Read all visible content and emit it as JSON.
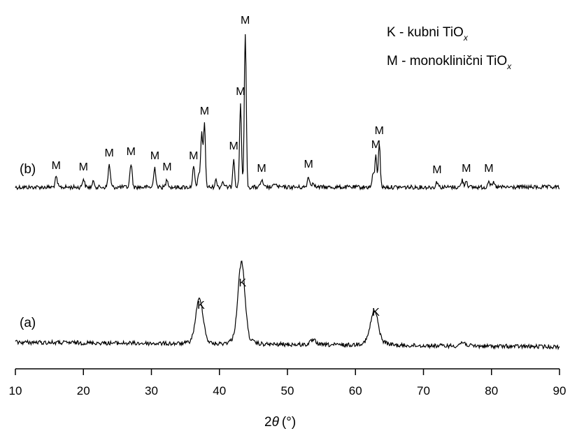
{
  "chart_data": {
    "type": "line",
    "xlabel_prefix": "2",
    "xlabel_symbol": "θ",
    "xlabel_unit": "(°)",
    "xlim": [
      10,
      90
    ],
    "xticks": [
      10,
      20,
      30,
      40,
      50,
      60,
      70,
      80,
      90
    ],
    "ylabel": "",
    "legend": [
      {
        "text": "K - kubni TiO",
        "sub": "x"
      },
      {
        "text": "M - monoklinični TiO",
        "sub": "x"
      }
    ],
    "series": [
      {
        "label": "(b)",
        "color": "#000000",
        "baseline": 0,
        "peaks": [
          {
            "x": 16.0,
            "h": 14,
            "label": "M"
          },
          {
            "x": 20.0,
            "h": 12,
            "label": "M"
          },
          {
            "x": 21.5,
            "h": 8,
            "label": ""
          },
          {
            "x": 23.8,
            "h": 32,
            "label": "M"
          },
          {
            "x": 27.0,
            "h": 34,
            "label": "M"
          },
          {
            "x": 30.5,
            "h": 28,
            "label": "M"
          },
          {
            "x": 32.3,
            "h": 12,
            "label": "M"
          },
          {
            "x": 36.2,
            "h": 28,
            "label": "M"
          },
          {
            "x": 37.0,
            "h": 20,
            "label": ""
          },
          {
            "x": 37.4,
            "h": 76,
            "label": ""
          },
          {
            "x": 37.8,
            "h": 92,
            "label": "M"
          },
          {
            "x": 39.5,
            "h": 10,
            "label": ""
          },
          {
            "x": 40.5,
            "h": 8,
            "label": ""
          },
          {
            "x": 42.1,
            "h": 42,
            "label": "M"
          },
          {
            "x": 43.1,
            "h": 120,
            "label": "M"
          },
          {
            "x": 43.8,
            "h": 222,
            "label": "M"
          },
          {
            "x": 46.2,
            "h": 10,
            "label": "M"
          },
          {
            "x": 48.2,
            "h": 6,
            "label": ""
          },
          {
            "x": 53.1,
            "h": 16,
            "label": "M"
          },
          {
            "x": 53.8,
            "h": 8,
            "label": ""
          },
          {
            "x": 62.6,
            "h": 18,
            "label": ""
          },
          {
            "x": 63.0,
            "h": 44,
            "label": "M"
          },
          {
            "x": 63.5,
            "h": 64,
            "label": "M"
          },
          {
            "x": 72.0,
            "h": 8,
            "label": "M"
          },
          {
            "x": 75.7,
            "h": 10,
            "label": ""
          },
          {
            "x": 76.3,
            "h": 10,
            "label": "M"
          },
          {
            "x": 79.6,
            "h": 10,
            "label": "M"
          },
          {
            "x": 80.3,
            "h": 6,
            "label": ""
          }
        ]
      },
      {
        "label": "(a)",
        "color": "#000000",
        "baseline": 0,
        "peaks": [
          {
            "x": 36.8,
            "h": 32,
            "label": ""
          },
          {
            "x": 37.3,
            "h": 36,
            "label": "K"
          },
          {
            "x": 43.0,
            "h": 50,
            "label": ""
          },
          {
            "x": 43.4,
            "h": 68,
            "label": "K"
          },
          {
            "x": 62.5,
            "h": 22,
            "label": ""
          },
          {
            "x": 63.0,
            "h": 26,
            "label": "K"
          },
          {
            "x": 53.8,
            "h": 6,
            "label": ""
          },
          {
            "x": 75.8,
            "h": 5,
            "label": ""
          }
        ]
      }
    ],
    "grid": false
  }
}
